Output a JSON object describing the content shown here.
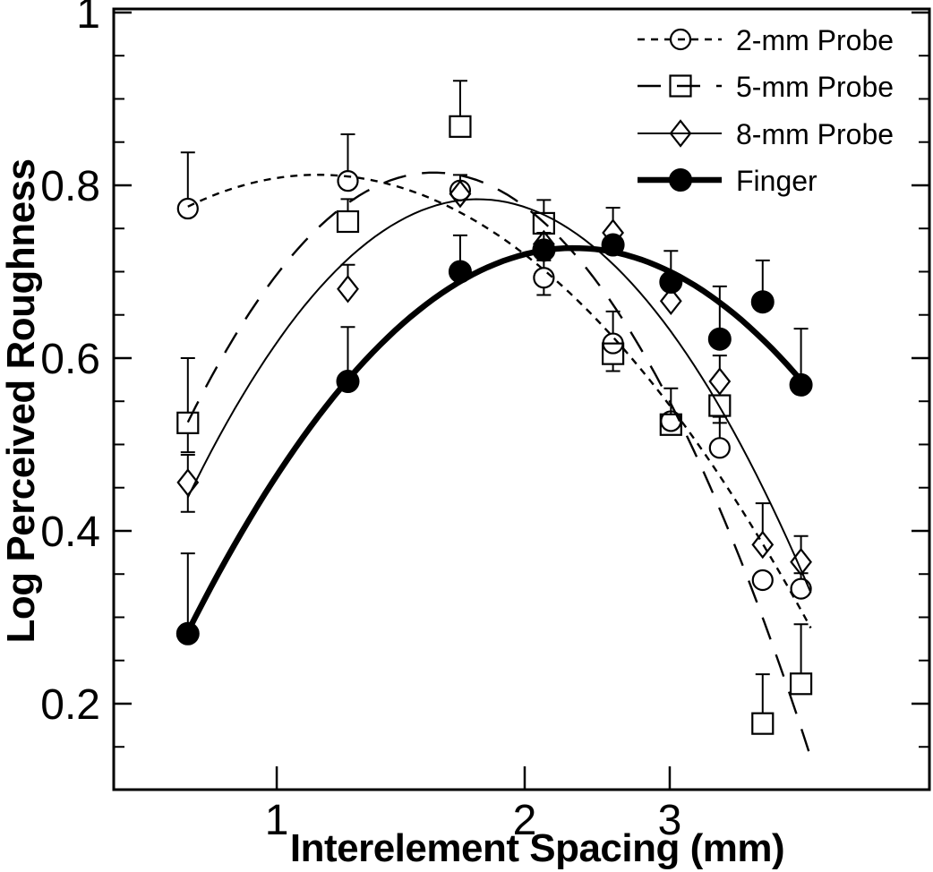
{
  "figure": {
    "background": "#ffffff",
    "ink": "#000000"
  },
  "chart_data": {
    "type": "scatter",
    "title": "",
    "xlabel": "Interelement Spacing (mm)",
    "ylabel": "Log Perceived Roughness",
    "x_scale": "log10",
    "y_scale": "linear",
    "xlim": [
      0.634,
      6.2
    ],
    "ylim": [
      0.1005,
      1.0041
    ],
    "grid": false,
    "legend_position": "top-right-inside",
    "x_ticks": [
      {
        "value": 1,
        "label": "1"
      },
      {
        "value": 2,
        "label": "2"
      },
      {
        "value": 3,
        "label": "3"
      }
    ],
    "y_ticks": [
      {
        "value": 1.0,
        "label": "1"
      },
      {
        "value": 0.8,
        "label": "0.8"
      },
      {
        "value": 0.6,
        "label": "0.6"
      },
      {
        "value": 0.4,
        "label": "0.4"
      },
      {
        "value": 0.2,
        "label": "0.2"
      }
    ],
    "y_minor_tick_step": 0.05,
    "fit_curve": "quadratic-in-log10(x)",
    "series": [
      {
        "name": "2-mm Probe",
        "marker": "open-circle",
        "line": "dashed-short",
        "curve_range": [
          0.78,
          4.45
        ],
        "points": [
          {
            "x": 0.78,
            "y": 0.773,
            "eu": 0.065,
            "ed": 0
          },
          {
            "x": 1.22,
            "y": 0.805,
            "eu": 0.054,
            "ed": 0
          },
          {
            "x": 1.67,
            "y": 0.794,
            "eu": 0.018,
            "ed": 0
          },
          {
            "x": 2.11,
            "y": 0.693,
            "eu": 0.02,
            "ed": 0.02
          },
          {
            "x": 2.56,
            "y": 0.617,
            "eu": 0.037,
            "ed": 0
          },
          {
            "x": 3.01,
            "y": 0.527,
            "eu": 0,
            "ed": 0
          },
          {
            "x": 3.45,
            "y": 0.496,
            "eu": 0.036,
            "ed": 0
          },
          {
            "x": 3.89,
            "y": 0.343,
            "eu": 0,
            "ed": 0
          },
          {
            "x": 4.33,
            "y": 0.333,
            "eu": 0.018,
            "ed": 0
          }
        ]
      },
      {
        "name": "5-mm Probe",
        "marker": "open-square",
        "line": "dashed-long",
        "curve_range": [
          0.78,
          4.45
        ],
        "points": [
          {
            "x": 0.78,
            "y": 0.525,
            "eu": 0.075,
            "ed": 0.034
          },
          {
            "x": 1.22,
            "y": 0.758,
            "eu": 0.026,
            "ed": 0
          },
          {
            "x": 1.67,
            "y": 0.868,
            "eu": 0.053,
            "ed": 0
          },
          {
            "x": 2.11,
            "y": 0.756,
            "eu": 0.027,
            "ed": 0
          },
          {
            "x": 2.56,
            "y": 0.605,
            "eu": 0,
            "ed": 0.02
          },
          {
            "x": 3.01,
            "y": 0.523,
            "eu": 0.042,
            "ed": 0
          },
          {
            "x": 3.45,
            "y": 0.545,
            "eu": 0,
            "ed": 0.02
          },
          {
            "x": 3.89,
            "y": 0.177,
            "eu": 0.057,
            "ed": 0
          },
          {
            "x": 4.33,
            "y": 0.223,
            "eu": 0.069,
            "ed": 0
          }
        ]
      },
      {
        "name": "8-mm Probe",
        "marker": "open-diamond",
        "line": "solid-thin",
        "curve_range": [
          0.78,
          4.45
        ],
        "points": [
          {
            "x": 0.78,
            "y": 0.456,
            "eu": 0.032,
            "ed": 0.034
          },
          {
            "x": 1.22,
            "y": 0.68,
            "eu": 0.028,
            "ed": 0
          },
          {
            "x": 1.67,
            "y": 0.79,
            "eu": 0,
            "ed": 0
          },
          {
            "x": 2.11,
            "y": 0.732,
            "eu": 0,
            "ed": 0
          },
          {
            "x": 2.56,
            "y": 0.745,
            "eu": 0.029,
            "ed": 0
          },
          {
            "x": 3.01,
            "y": 0.666,
            "eu": 0.017,
            "ed": 0
          },
          {
            "x": 3.45,
            "y": 0.573,
            "eu": 0.03,
            "ed": 0
          },
          {
            "x": 3.89,
            "y": 0.384,
            "eu": 0.048,
            "ed": 0
          },
          {
            "x": 4.33,
            "y": 0.364,
            "eu": 0.03,
            "ed": 0
          }
        ]
      },
      {
        "name": "Finger",
        "marker": "filled-circle",
        "line": "solid-thick",
        "curve_range": [
          0.78,
          4.35
        ],
        "points": [
          {
            "x": 0.78,
            "y": 0.281,
            "eu": 0.093,
            "ed": 0
          },
          {
            "x": 1.22,
            "y": 0.573,
            "eu": 0.063,
            "ed": 0
          },
          {
            "x": 1.67,
            "y": 0.7,
            "eu": 0.042,
            "ed": 0
          },
          {
            "x": 2.11,
            "y": 0.725,
            "eu": 0.02,
            "ed": 0
          },
          {
            "x": 2.56,
            "y": 0.731,
            "eu": 0,
            "ed": 0
          },
          {
            "x": 3.01,
            "y": 0.688,
            "eu": 0.036,
            "ed": 0
          },
          {
            "x": 3.45,
            "y": 0.622,
            "eu": 0.061,
            "ed": 0
          },
          {
            "x": 3.89,
            "y": 0.665,
            "eu": 0.048,
            "ed": 0
          },
          {
            "x": 4.33,
            "y": 0.569,
            "eu": 0.065,
            "ed": 0
          }
        ]
      }
    ]
  }
}
